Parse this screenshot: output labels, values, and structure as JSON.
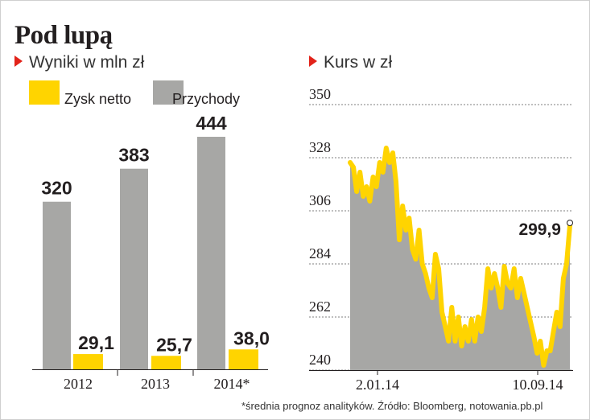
{
  "title": "Pod lupą",
  "footnote": "*średnia prognoz analityków. Źródło: Bloomberg, notowania.pb.pl",
  "colors": {
    "profit": "#ffd400",
    "revenue": "#a7a7a5",
    "accent": "#e2231a",
    "area": "#a7a7a5",
    "line": "#ffd400"
  },
  "chart_data": [
    {
      "type": "bar",
      "title": "Wyniki w mln zł",
      "categories": [
        "2012",
        "2013",
        "2014*"
      ],
      "series": [
        {
          "name": "Zysk netto",
          "values": [
            29.1,
            25.7,
            38.0
          ],
          "labels": [
            "29,1",
            "25,7",
            "38,0"
          ]
        },
        {
          "name": "Przychody",
          "values": [
            320,
            383,
            444
          ],
          "labels": [
            "320",
            "383",
            "444"
          ]
        }
      ],
      "ylim": [
        0,
        444
      ],
      "legend": "top-left"
    },
    {
      "type": "line",
      "title": "Kurs w zł",
      "x_ticks": [
        "2.01.14",
        "10.09.14"
      ],
      "y_ticks": [
        "350",
        "328",
        "306",
        "284",
        "262",
        "240"
      ],
      "ylim": [
        240,
        350
      ],
      "grid": "horizontal dashed",
      "annotation": "299,9",
      "values": [
        326,
        324,
        314,
        322,
        312,
        316,
        310,
        320,
        316,
        326,
        322,
        332,
        326,
        330,
        318,
        294,
        308,
        298,
        303,
        290,
        286,
        298,
        284,
        280,
        274,
        270,
        288,
        282,
        264,
        258,
        252,
        266,
        252,
        262,
        250,
        258,
        252,
        261,
        252,
        262,
        256,
        266,
        282,
        274,
        280,
        274,
        266,
        283,
        276,
        274,
        282,
        270,
        278,
        272,
        266,
        260,
        254,
        247,
        252,
        242,
        248,
        248,
        256,
        264,
        258,
        278,
        284,
        300
      ]
    }
  ]
}
